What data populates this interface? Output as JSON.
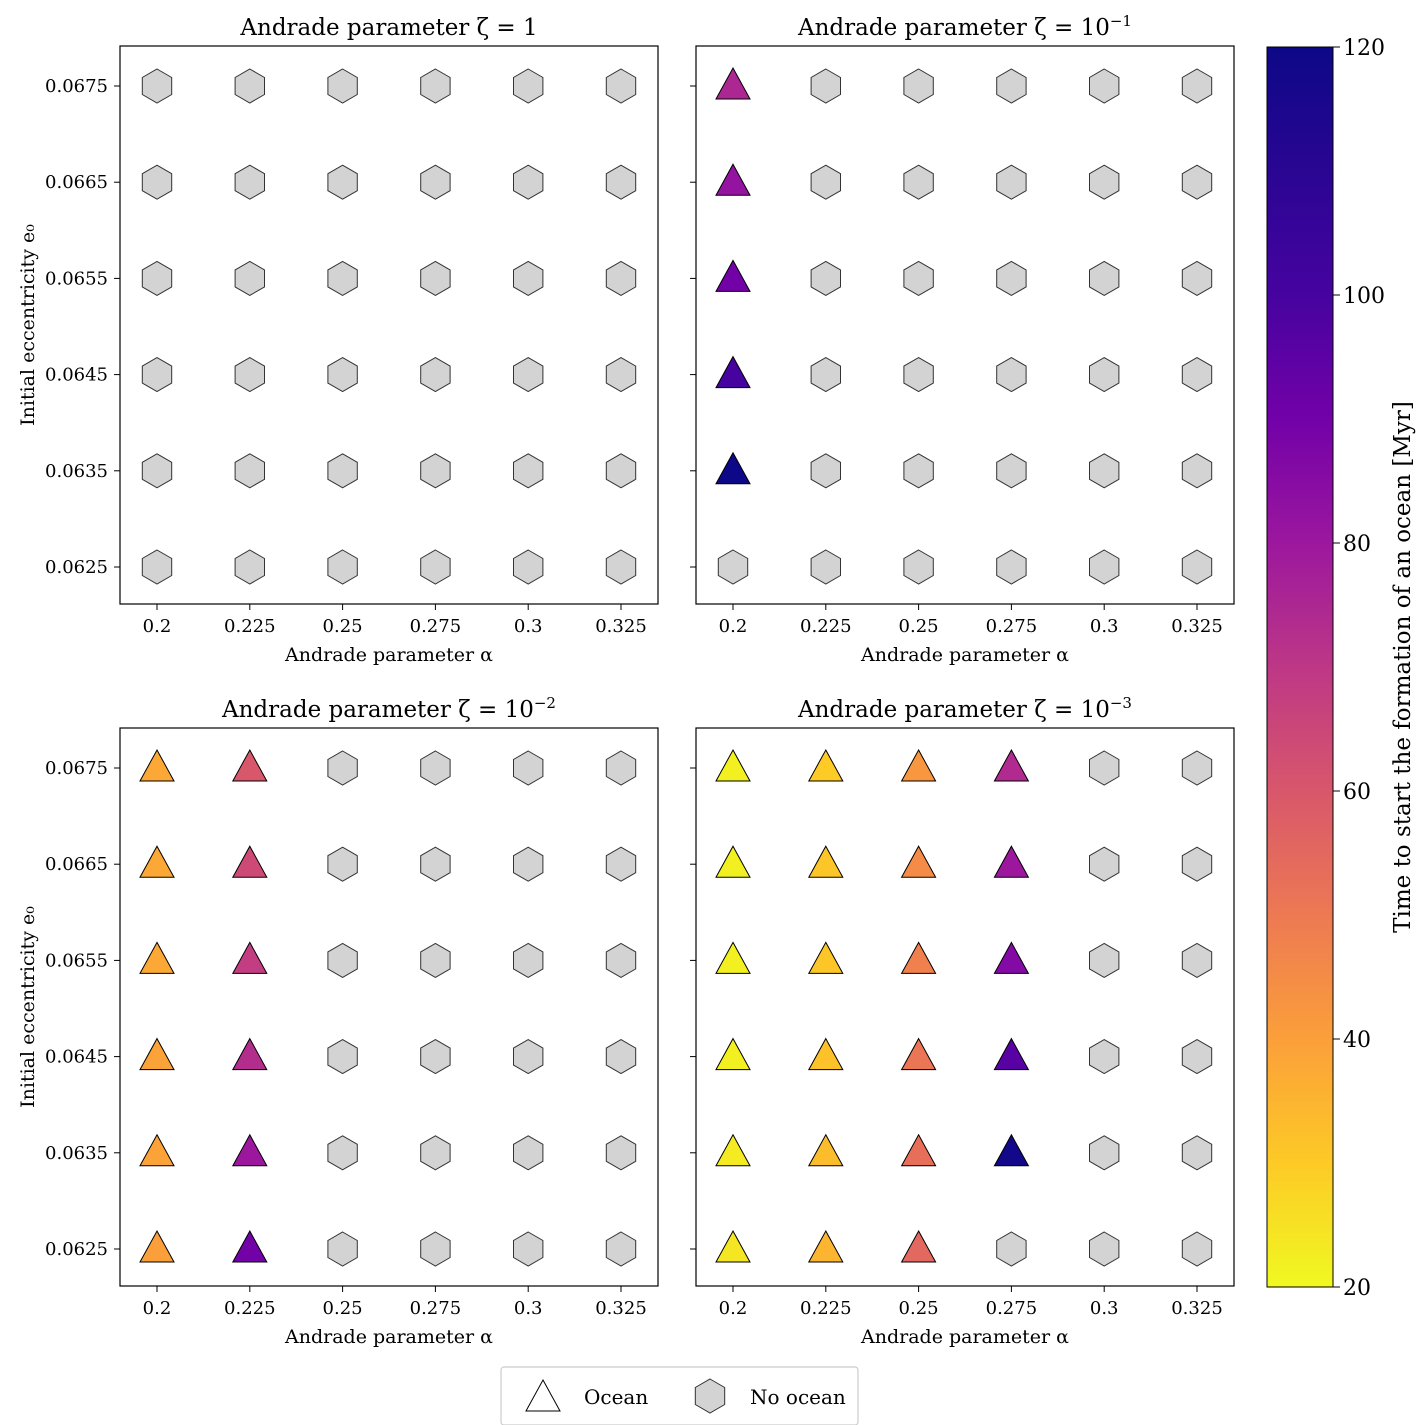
{
  "chart_data": {
    "type": "scatter",
    "shared": {
      "x_categories": [
        "0.2",
        "0.225",
        "0.25",
        "0.275",
        "0.3",
        "0.325"
      ],
      "y_categories": [
        "0.0625",
        "0.0635",
        "0.0645",
        "0.0655",
        "0.0665",
        "0.0675"
      ],
      "xlabel": "Andrade parameter α",
      "ylabel": "Initial eccentricity e₀",
      "marker_ocean": "triangle",
      "marker_no_ocean": "hexagon",
      "no_ocean_color": "#d3d3d3"
    },
    "colorbar": {
      "label": "Time to start the formation of an ocean [Myr]",
      "colormap": "plasma",
      "range": [
        20,
        120
      ],
      "ticks": [
        "20",
        "40",
        "60",
        "80",
        "100",
        "120"
      ]
    },
    "legend": {
      "placement": "bottom-center",
      "items": [
        {
          "label": "Ocean",
          "marker": "triangle"
        },
        {
          "label": "No ocean",
          "marker": "hexagon"
        }
      ]
    },
    "panels": [
      {
        "title": "Andrade parameter ζ = 1",
        "title_base": "Andrade parameter ζ = 1",
        "title_exp": "",
        "show_xlabel": true,
        "show_ylabel": true,
        "show_yticklabels": true,
        "ocean_time_myr": [
          [
            null,
            null,
            null,
            null,
            null,
            null
          ],
          [
            null,
            null,
            null,
            null,
            null,
            null
          ],
          [
            null,
            null,
            null,
            null,
            null,
            null
          ],
          [
            null,
            null,
            null,
            null,
            null,
            null
          ],
          [
            null,
            null,
            null,
            null,
            null,
            null
          ],
          [
            null,
            null,
            null,
            null,
            null,
            null
          ]
        ]
      },
      {
        "title": "Andrade parameter ζ = 10⁻¹",
        "title_base": "Andrade parameter ζ = 10",
        "title_exp": "−1",
        "show_xlabel": true,
        "show_ylabel": false,
        "show_yticklabels": false,
        "ocean_time_myr": [
          [
            null,
            null,
            null,
            null,
            null,
            null
          ],
          [
            120,
            null,
            null,
            null,
            null,
            null
          ],
          [
            100,
            null,
            null,
            null,
            null,
            null
          ],
          [
            90,
            null,
            null,
            null,
            null,
            null
          ],
          [
            82,
            null,
            null,
            null,
            null,
            null
          ],
          [
            75,
            null,
            null,
            null,
            null,
            null
          ]
        ]
      },
      {
        "title": "Andrade parameter ζ = 10⁻²",
        "title_base": "Andrade parameter ζ = 10",
        "title_exp": "−2",
        "show_xlabel": true,
        "show_ylabel": true,
        "show_yticklabels": true,
        "ocean_time_myr": [
          [
            40,
            90,
            null,
            null,
            null,
            null
          ],
          [
            39,
            80,
            null,
            null,
            null,
            null
          ],
          [
            39,
            73,
            null,
            null,
            null,
            null
          ],
          [
            38,
            68,
            null,
            null,
            null,
            null
          ],
          [
            38,
            64,
            null,
            null,
            null,
            null
          ],
          [
            38,
            60,
            null,
            null,
            null,
            null
          ]
        ]
      },
      {
        "title": "Andrade parameter ζ = 10⁻³",
        "title_base": "Andrade parameter ζ = 10",
        "title_exp": "−3",
        "show_xlabel": true,
        "show_ylabel": false,
        "show_yticklabels": false,
        "ocean_time_myr": [
          [
            24,
            35,
            55,
            null,
            null,
            null
          ],
          [
            23,
            33,
            53,
            118,
            null,
            null
          ],
          [
            22,
            32,
            51,
            96,
            null,
            null
          ],
          [
            22,
            31,
            48,
            86,
            null,
            null
          ],
          [
            22,
            31,
            45,
            80,
            null,
            null
          ],
          [
            22,
            30,
            42,
            74,
            null,
            null
          ]
        ]
      }
    ]
  }
}
